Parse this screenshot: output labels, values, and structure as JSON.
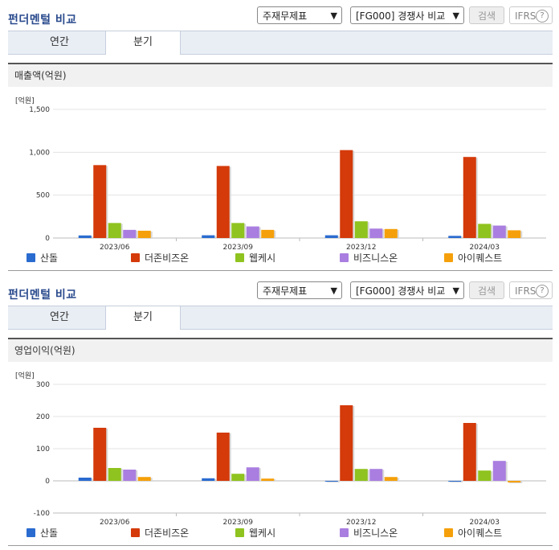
{
  "colors": {
    "s1": "#2a6bd0",
    "s2": "#d43a0a",
    "s3": "#8fc31f",
    "s4": "#a97ee0",
    "s5": "#f5a00a"
  },
  "panels": [
    {
      "title": "펀더멘털 비교",
      "select1": "주재무제표",
      "select2": "[FG000] 경쟁사 비교",
      "search": "검색",
      "ifrs": "IFRS",
      "ifrs_help": "?",
      "tabs": [
        "연간",
        "분기"
      ],
      "active_tab": "분기",
      "section": "매출액(억원)",
      "unit": "[억원]",
      "legend": [
        "산돌",
        "더존비즈온",
        "웹케시",
        "비즈니스온",
        "아이퀘스트"
      ],
      "chart_data": {
        "type": "bar",
        "categories": [
          "2023/06",
          "2023/09",
          "2023/12",
          "2024/03"
        ],
        "ylim": [
          0,
          1500
        ],
        "yticks": [
          "0",
          "500",
          "1,000",
          "1,500"
        ],
        "series": [
          {
            "name": "산돌",
            "values": [
              30,
              32,
              32,
              25
            ]
          },
          {
            "name": "더존비즈온",
            "values": [
              850,
              840,
              1025,
              945
            ]
          },
          {
            "name": "웹케시",
            "values": [
              175,
              175,
              195,
              165
            ]
          },
          {
            "name": "비즈니스온",
            "values": [
              95,
              135,
              110,
              145
            ]
          },
          {
            "name": "아이퀘스트",
            "values": [
              85,
              95,
              105,
              90
            ]
          }
        ]
      }
    },
    {
      "title": "펀더멘털 비교",
      "select1": "주재무제표",
      "select2": "[FG000] 경쟁사 비교",
      "search": "검색",
      "ifrs": "IFRS",
      "ifrs_help": "?",
      "tabs": [
        "연간",
        "분기"
      ],
      "active_tab": "분기",
      "section": "영업이익(억원)",
      "unit": "[억원]",
      "legend": [
        "산돌",
        "더존비즈온",
        "웹케시",
        "비즈니스온",
        "아이퀘스트"
      ],
      "chart_data": {
        "type": "bar",
        "categories": [
          "2023/06",
          "2023/09",
          "2023/12",
          "2024/03"
        ],
        "ylim": [
          -100,
          300
        ],
        "yticks": [
          "-100",
          "0",
          "100",
          "200",
          "300"
        ],
        "series": [
          {
            "name": "산돌",
            "values": [
              10,
              8,
              -2,
              -1
            ]
          },
          {
            "name": "더존비즈온",
            "values": [
              165,
              150,
              235,
              180
            ]
          },
          {
            "name": "웹케시",
            "values": [
              40,
              22,
              37,
              32
            ]
          },
          {
            "name": "비즈니스온",
            "values": [
              35,
              42,
              37,
              62
            ]
          },
          {
            "name": "아이퀘스트",
            "values": [
              12,
              7,
              12,
              -5
            ]
          }
        ]
      }
    }
  ]
}
